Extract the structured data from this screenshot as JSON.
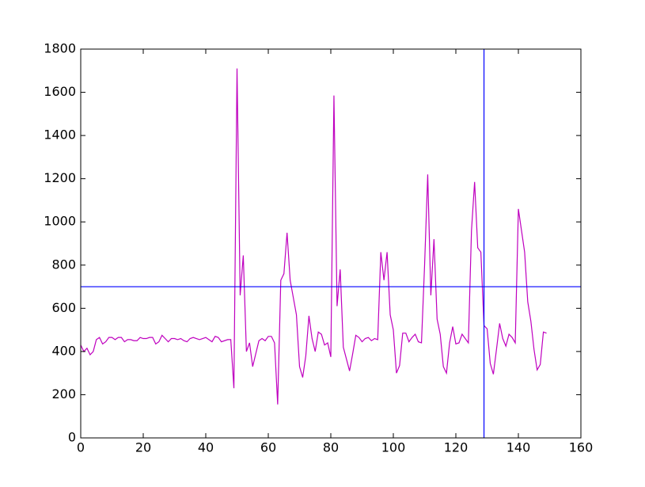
{
  "chart_data": {
    "type": "line",
    "x": [
      0,
      1,
      2,
      3,
      4,
      5,
      6,
      7,
      8,
      9,
      10,
      11,
      12,
      13,
      14,
      15,
      16,
      17,
      18,
      19,
      20,
      21,
      22,
      23,
      24,
      25,
      26,
      27,
      28,
      29,
      30,
      31,
      32,
      33,
      34,
      35,
      36,
      37,
      38,
      39,
      40,
      41,
      42,
      43,
      44,
      45,
      46,
      47,
      48,
      49,
      50,
      51,
      52,
      53,
      54,
      55,
      56,
      57,
      58,
      59,
      60,
      61,
      62,
      63,
      64,
      65,
      66,
      67,
      68,
      69,
      70,
      71,
      72,
      73,
      74,
      75,
      76,
      77,
      78,
      79,
      80,
      81,
      82,
      83,
      84,
      85,
      86,
      87,
      88,
      89,
      90,
      91,
      92,
      93,
      94,
      95,
      96,
      97,
      98,
      99,
      100,
      101,
      102,
      103,
      104,
      105,
      106,
      107,
      108,
      109,
      110,
      111,
      112,
      113,
      114,
      115,
      116,
      117,
      118,
      119,
      120,
      121,
      122,
      123,
      124,
      125,
      126,
      127,
      128,
      129,
      130,
      131,
      132,
      133,
      134,
      135,
      136,
      137,
      138,
      139,
      140,
      141,
      142,
      143,
      144,
      145,
      146,
      147,
      148,
      149
    ],
    "series": [
      {
        "color": "#bf00bf",
        "values": [
          430,
          400,
          415,
          385,
          400,
          455,
          465,
          435,
          445,
          465,
          465,
          455,
          465,
          465,
          445,
          455,
          455,
          450,
          450,
          465,
          460,
          460,
          465,
          465,
          435,
          445,
          475,
          460,
          445,
          460,
          460,
          455,
          460,
          450,
          445,
          460,
          465,
          460,
          455,
          460,
          465,
          455,
          445,
          470,
          465,
          445,
          450,
          455,
          455,
          230,
          1710,
          660,
          845,
          400,
          440,
          330,
          390,
          450,
          460,
          450,
          470,
          470,
          440,
          155,
          730,
          760,
          950,
          730,
          650,
          570,
          330,
          280,
          380,
          565,
          460,
          400,
          490,
          480,
          430,
          440,
          375,
          1585,
          610,
          780,
          420,
          365,
          310,
          390,
          475,
          465,
          445,
          460,
          465,
          450,
          460,
          455,
          860,
          730,
          860,
          570,
          500,
          300,
          335,
          485,
          485,
          445,
          465,
          480,
          445,
          440,
          800,
          1220,
          660,
          920,
          550,
          480,
          330,
          300,
          440,
          515,
          435,
          440,
          480,
          460,
          440,
          960,
          1185,
          880,
          860,
          520,
          505,
          345,
          295,
          410,
          530,
          460,
          425,
          480,
          465,
          440,
          1060,
          960,
          860,
          630,
          540,
          410,
          315,
          340,
          490,
          485
        ]
      }
    ],
    "hlines": [
      700
    ],
    "vlines": [
      129
    ],
    "ref_color": "#0000ff",
    "xlim": [
      0,
      160
    ],
    "xticks": [
      0,
      20,
      40,
      60,
      80,
      100,
      120,
      140,
      160
    ],
    "ylim": [
      0,
      1800
    ],
    "yticks": [
      0,
      200,
      400,
      600,
      800,
      1000,
      1200,
      1400,
      1600,
      1800
    ]
  }
}
